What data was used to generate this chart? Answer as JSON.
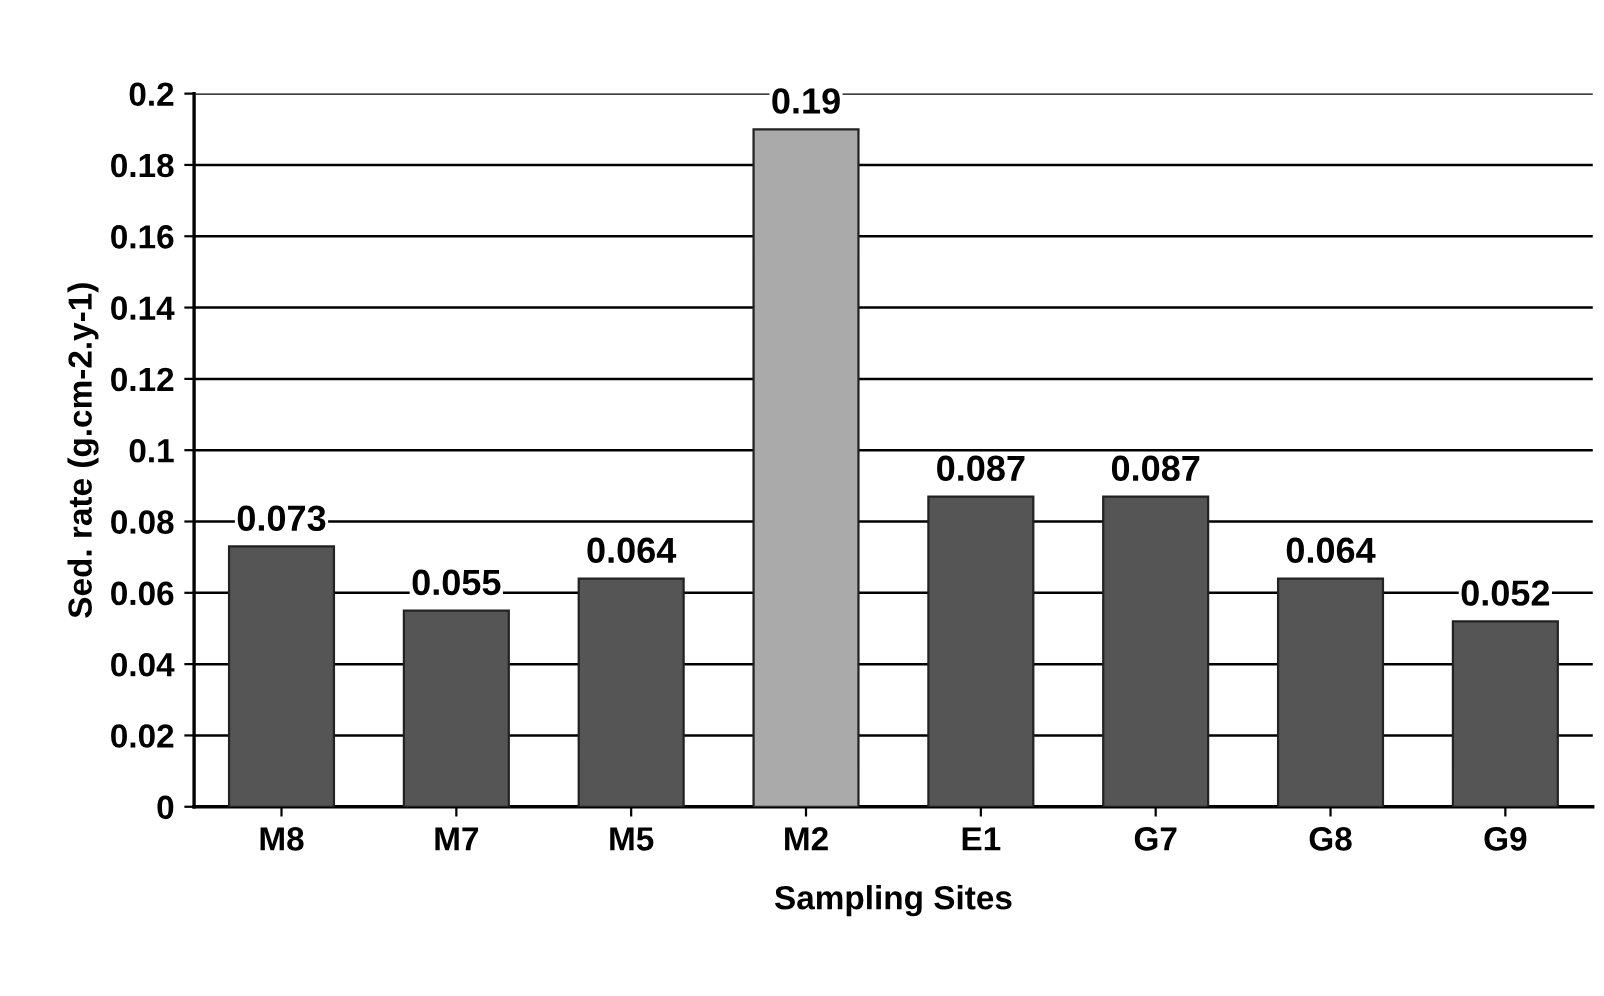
{
  "chart_data": {
    "type": "bar",
    "xlabel": "Sampling Sites",
    "ylabel": "Sed. rate (g.cm-2.y-1)",
    "categories": [
      "M8",
      "M7",
      "M5",
      "M2",
      "E1",
      "G7",
      "G8",
      "G9"
    ],
    "values": [
      0.073,
      0.055,
      0.064,
      0.19,
      0.087,
      0.087,
      0.064,
      0.052
    ],
    "colors": [
      "#555555",
      "#555555",
      "#555555",
      "#aaaaaa",
      "#555555",
      "#555555",
      "#555555",
      "#555555"
    ],
    "ylim": [
      0,
      0.2
    ],
    "yticks": [
      0,
      0.02,
      0.04,
      0.06,
      0.08,
      0.1,
      0.12,
      0.14,
      0.16,
      0.18,
      0.2
    ],
    "grid": "y",
    "data_labels": true
  }
}
